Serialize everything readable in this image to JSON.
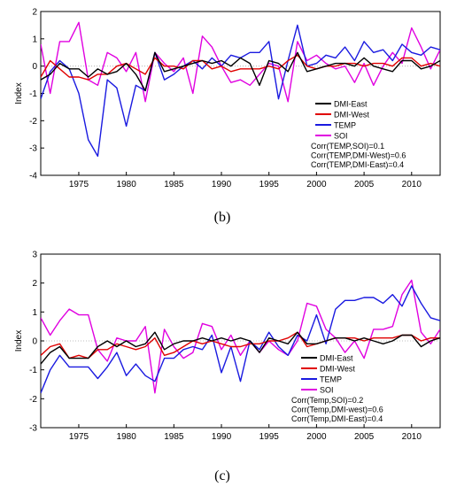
{
  "chart_data": [
    {
      "type": "line",
      "panel_label": "(b)",
      "ylabel": "Index",
      "ylim": [
        -4,
        2
      ],
      "xlim": [
        1971,
        2013
      ],
      "yticks": [
        -4,
        -3,
        -2,
        -1,
        0,
        1,
        2
      ],
      "xticks": [
        1975,
        1980,
        1985,
        1990,
        1995,
        2000,
        2005,
        2010
      ],
      "zero_line": true,
      "x": [
        1971,
        1972,
        1973,
        1974,
        1975,
        1976,
        1977,
        1978,
        1979,
        1980,
        1981,
        1982,
        1983,
        1984,
        1985,
        1986,
        1987,
        1988,
        1989,
        1990,
        1991,
        1992,
        1993,
        1994,
        1995,
        1996,
        1997,
        1998,
        1999,
        2000,
        2001,
        2002,
        2003,
        2004,
        2005,
        2006,
        2007,
        2008,
        2009,
        2010,
        2011,
        2012,
        2013
      ],
      "series": [
        {
          "name": "DMI-East",
          "color": "#000000",
          "values": [
            -0.5,
            -0.3,
            0.1,
            -0.1,
            -0.1,
            -0.4,
            -0.1,
            -0.3,
            -0.2,
            0.1,
            -0.3,
            -0.9,
            0.5,
            -0.2,
            -0.1,
            0.0,
            0.1,
            0.2,
            0.1,
            0.2,
            0.0,
            0.3,
            0.1,
            -0.7,
            0.2,
            0.1,
            -0.2,
            0.5,
            -0.2,
            -0.1,
            0.0,
            0.1,
            0.1,
            0.0,
            0.3,
            0.0,
            -0.1,
            -0.2,
            0.2,
            0.2,
            -0.1,
            0.0,
            0.2
          ]
        },
        {
          "name": "DMI-West",
          "color": "#e00000",
          "values": [
            -0.4,
            0.2,
            -0.1,
            -0.4,
            -0.4,
            -0.5,
            -0.3,
            -0.3,
            0.0,
            0.1,
            -0.1,
            -0.3,
            0.3,
            0.0,
            0.0,
            -0.1,
            0.2,
            0.2,
            -0.1,
            0.0,
            -0.2,
            -0.1,
            -0.1,
            -0.1,
            0.0,
            -0.1,
            0.2,
            0.4,
            0.0,
            -0.1,
            0.0,
            0.0,
            0.1,
            0.1,
            0.0,
            0.1,
            0.1,
            0.0,
            0.3,
            0.3,
            0.0,
            0.1,
            0.0
          ]
        },
        {
          "name": "TEMP",
          "color": "#1a1ae0",
          "values": [
            -1.2,
            -0.2,
            0.2,
            -0.1,
            -1.0,
            -2.7,
            -3.3,
            -0.5,
            -0.8,
            -2.2,
            -0.7,
            -0.9,
            0.5,
            -0.5,
            -0.3,
            0.0,
            0.2,
            -0.1,
            0.3,
            0.0,
            0.4,
            0.3,
            0.5,
            0.5,
            0.9,
            -1.2,
            0.2,
            1.5,
            0.0,
            0.1,
            0.4,
            0.3,
            0.7,
            0.2,
            0.9,
            0.5,
            0.6,
            0.2,
            0.8,
            0.5,
            0.4,
            0.7,
            0.6
          ]
        },
        {
          "name": "SOI",
          "color": "#e000e0",
          "values": [
            0.8,
            -1.0,
            0.9,
            0.9,
            1.6,
            -0.5,
            -0.7,
            0.5,
            0.3,
            -0.2,
            0.5,
            -1.3,
            0.5,
            0.1,
            -0.2,
            0.3,
            -1.0,
            1.1,
            0.7,
            0.0,
            -0.6,
            -0.5,
            -0.7,
            -0.3,
            0.1,
            0.0,
            -1.3,
            0.9,
            0.2,
            0.4,
            0.1,
            -0.1,
            0.0,
            -0.6,
            0.1,
            -0.7,
            0.0,
            0.5,
            0.1,
            1.4,
            0.7,
            -0.1,
            0.6
          ]
        }
      ],
      "annotations": [
        "Corr(TEMP,SOI)=0.1",
        "Corr(TEMP,DMI-West)=0.6",
        "Corr(TEMP,DMI-East)=0.4"
      ],
      "legend_placement": "lower-right"
    },
    {
      "type": "line",
      "panel_label": "(c)",
      "ylabel": "Index",
      "ylim": [
        -3,
        3
      ],
      "xlim": [
        1971,
        2013
      ],
      "yticks": [
        -3,
        -2,
        -1,
        0,
        1,
        2,
        3
      ],
      "xticks": [
        1975,
        1980,
        1985,
        1990,
        1995,
        2000,
        2005,
        2010
      ],
      "zero_line": true,
      "x": [
        1971,
        1972,
        1973,
        1974,
        1975,
        1976,
        1977,
        1978,
        1979,
        1980,
        1981,
        1982,
        1983,
        1984,
        1985,
        1986,
        1987,
        1988,
        1989,
        1990,
        1991,
        1992,
        1993,
        1994,
        1995,
        1996,
        1997,
        1998,
        1999,
        2000,
        2001,
        2002,
        2003,
        2004,
        2005,
        2006,
        2007,
        2008,
        2009,
        2010,
        2011,
        2012,
        2013
      ],
      "series": [
        {
          "name": "DMI-East",
          "color": "#000000",
          "values": [
            -0.8,
            -0.4,
            -0.2,
            -0.6,
            -0.6,
            -0.6,
            -0.2,
            0.0,
            -0.2,
            0.0,
            -0.2,
            -0.1,
            0.3,
            -0.3,
            -0.1,
            0.0,
            0.0,
            0.1,
            0.0,
            0.1,
            0.0,
            0.1,
            0.0,
            -0.4,
            0.1,
            0.0,
            -0.1,
            0.3,
            -0.1,
            -0.1,
            0.0,
            0.1,
            0.1,
            0.0,
            0.1,
            0.0,
            -0.1,
            0.0,
            0.2,
            0.2,
            -0.2,
            0.0,
            0.1
          ]
        },
        {
          "name": "DMI-West",
          "color": "#e00000",
          "values": [
            -0.5,
            -0.2,
            -0.1,
            -0.6,
            -0.5,
            -0.6,
            -0.3,
            -0.3,
            -0.1,
            -0.2,
            -0.3,
            -0.2,
            0.1,
            -0.5,
            -0.4,
            -0.2,
            0.0,
            -0.1,
            0.0,
            -0.1,
            -0.2,
            -0.2,
            -0.1,
            -0.1,
            0.0,
            0.0,
            0.1,
            0.3,
            -0.2,
            -0.1,
            0.0,
            0.1,
            0.1,
            0.1,
            0.0,
            0.1,
            0.1,
            0.1,
            0.2,
            0.2,
            0.0,
            0.1,
            0.1
          ]
        },
        {
          "name": "TEMP",
          "color": "#1a1ae0",
          "values": [
            -1.8,
            -1.0,
            -0.5,
            -0.9,
            -0.9,
            -0.9,
            -1.3,
            -0.9,
            -0.4,
            -1.2,
            -0.8,
            -1.2,
            -1.4,
            -0.6,
            -0.6,
            -0.3,
            -0.2,
            -0.3,
            0.2,
            -1.1,
            -0.2,
            -1.4,
            0.0,
            -0.3,
            0.3,
            -0.2,
            -0.5,
            0.2,
            0.0,
            0.9,
            -0.1,
            1.1,
            1.4,
            1.4,
            1.5,
            1.5,
            1.3,
            1.6,
            1.2,
            1.9,
            1.3,
            0.8,
            0.7
          ]
        },
        {
          "name": "SOI",
          "color": "#e000e0",
          "values": [
            0.8,
            0.2,
            0.7,
            1.1,
            0.9,
            0.9,
            -0.3,
            -0.7,
            0.1,
            0.0,
            0.0,
            0.5,
            -1.8,
            0.4,
            -0.2,
            -0.6,
            -0.4,
            0.6,
            0.5,
            -0.3,
            0.2,
            -0.5,
            0.0,
            -0.4,
            0.0,
            -0.3,
            -0.5,
            0.0,
            1.3,
            1.2,
            0.4,
            0.1,
            -0.4,
            0.0,
            -0.6,
            0.4,
            0.4,
            0.5,
            1.6,
            2.1,
            0.3,
            -0.1,
            0.4
          ]
        }
      ],
      "annotations": [
        "Corr(Temp,SOI)=0.2",
        "Corr(Temp,DMI-west)=0.6",
        "Corr(Temp,DMI-East)=0.4"
      ],
      "legend_placement": "lower-right"
    }
  ]
}
